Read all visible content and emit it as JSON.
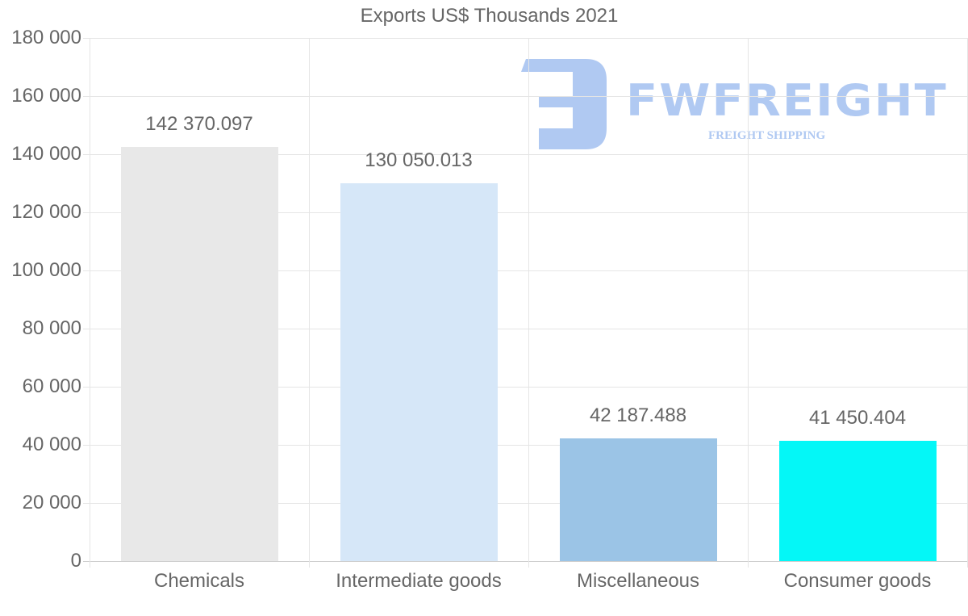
{
  "chart_data": {
    "type": "bar",
    "title": "Exports US$ Thousands 2021",
    "xlabel": "",
    "ylabel": "",
    "categories": [
      "Chemicals",
      "Intermediate goods",
      "Miscellaneous",
      "Consumer goods"
    ],
    "values": [
      142370.097,
      130050.013,
      42187.488,
      41450.404
    ],
    "value_labels": [
      "142 370.097",
      "130 050.013",
      "42 187.488",
      "41 450.404"
    ],
    "colors": [
      "#e8e8e8",
      "#d6e7f8",
      "#9bc4e6",
      "#04f7f7"
    ],
    "ylim": [
      0,
      180000
    ],
    "y_ticks": [
      0,
      20000,
      40000,
      60000,
      80000,
      100000,
      120000,
      140000,
      160000,
      180000
    ],
    "y_tick_labels": [
      "0",
      "20 000",
      "40 000",
      "60 000",
      "80 000",
      "100 000",
      "120 000",
      "140 000",
      "160 000",
      "180 000"
    ],
    "grid": true,
    "legend": "none"
  },
  "watermark": {
    "brand": "FWFREIGHT",
    "tagline": "FREIGHT SHIPPING",
    "color": "#b0c9f2"
  }
}
